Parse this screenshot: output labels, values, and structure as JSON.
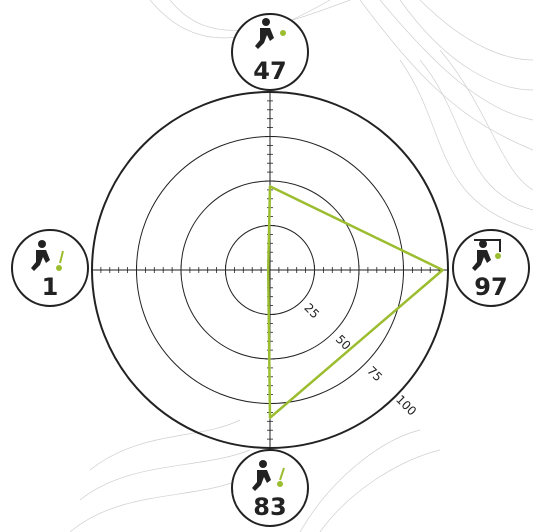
{
  "chart_data": {
    "type": "radar",
    "values": [
      47,
      97,
      83,
      1
    ],
    "rlim": [
      0,
      100
    ],
    "rticks": [
      25,
      50,
      75,
      100
    ],
    "color": "#9bbd2f"
  }
}
